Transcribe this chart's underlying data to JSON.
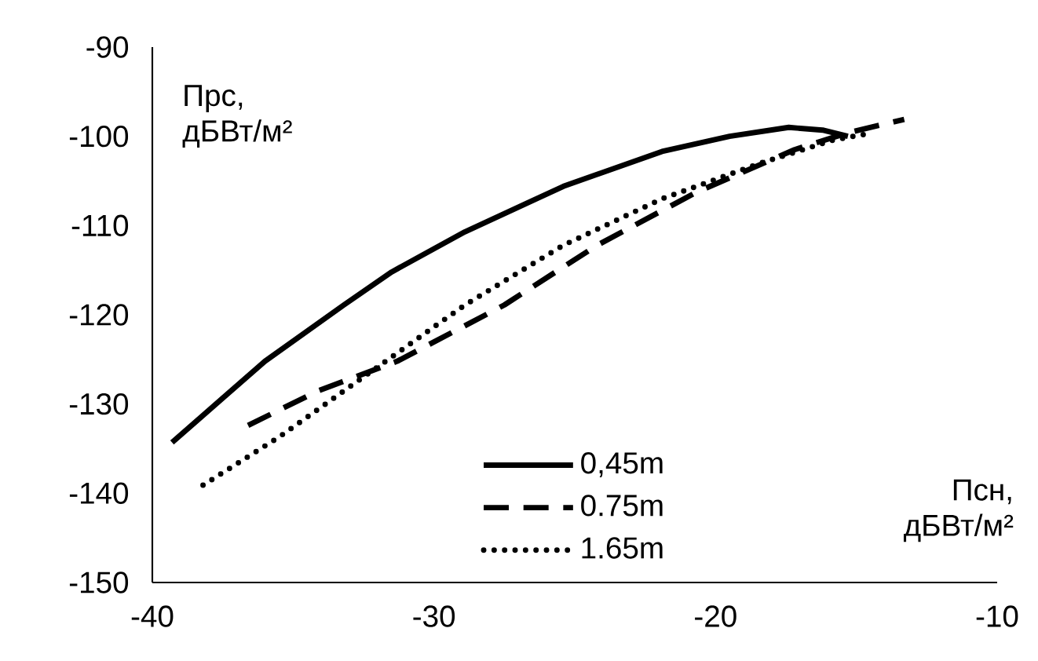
{
  "chart_data": {
    "type": "line",
    "xlabel": "Псн, дБВт/м²",
    "ylabel": "Прс, дБВт/м²",
    "xlim": [
      -40,
      -10
    ],
    "xticks": [
      -40,
      -30,
      -20,
      -10
    ],
    "ylim": [
      -150,
      -90
    ],
    "yticks": [
      -150,
      -140,
      -130,
      -120,
      -110,
      -100,
      -90
    ],
    "grid": false,
    "legend": "bottom",
    "marker": "none",
    "series": [
      {
        "name": "0,45m",
        "color": "#000000",
        "line_style": "solid",
        "x": [
          -39.3,
          -36.0,
          -33.2,
          -31.5,
          -28.9,
          -25.4,
          -21.9,
          -19.5,
          -17.4,
          -16.2,
          -15.3
        ],
        "values": [
          -134.3,
          -125.2,
          -118.9,
          -115.2,
          -110.7,
          -105.6,
          -101.7,
          -100.0,
          -99.0,
          -99.3,
          -100.0
        ]
      },
      {
        "name": "0.75m",
        "color": "#000000",
        "line_style": "dashed",
        "x": [
          -36.6,
          -34.1,
          -31.3,
          -27.5,
          -24.2,
          -20.7,
          -17.2,
          -15.3,
          -13.3
        ],
        "values": [
          -132.4,
          -128.5,
          -125.2,
          -118.9,
          -112.2,
          -106.3,
          -101.5,
          -99.6,
          -98.1
        ]
      },
      {
        "name": "1.65m",
        "color": "#000000",
        "line_style": "dotted",
        "x": [
          -38.2,
          -35.5,
          -32.2,
          -28.9,
          -25.4,
          -21.9,
          -18.4,
          -15.8,
          -14.4
        ],
        "values": [
          -139.1,
          -133.7,
          -126.3,
          -118.9,
          -112.2,
          -107.0,
          -103.0,
          -100.4,
          -99.6
        ]
      }
    ]
  }
}
